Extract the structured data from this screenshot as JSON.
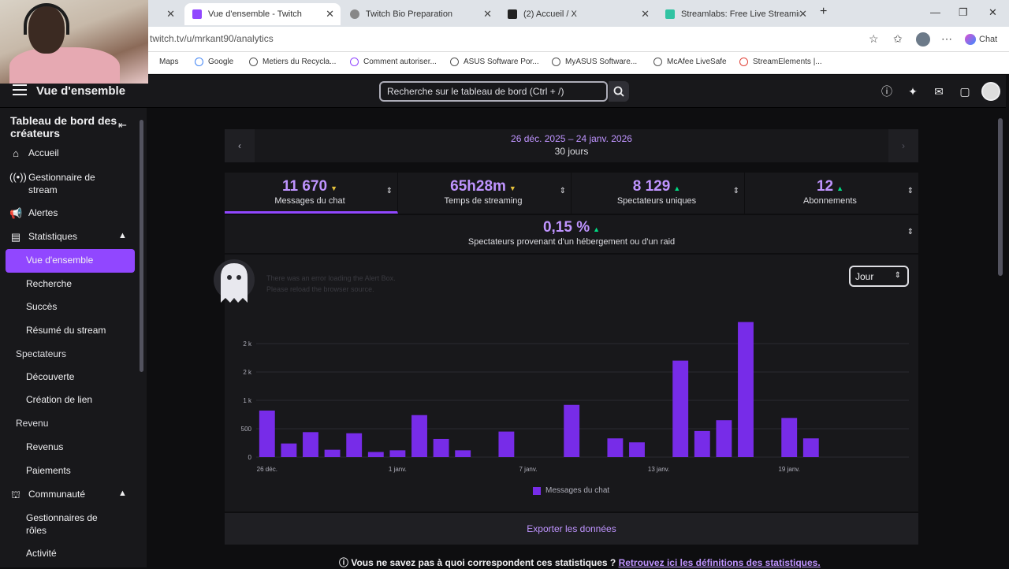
{
  "browser": {
    "tabs": [
      {
        "title": "Vue d'ensemble - Twitch",
        "active": true
      },
      {
        "title": "Twitch Bio Preparation",
        "active": false
      },
      {
        "title": "(2) Accueil / X",
        "active": false
      },
      {
        "title": "Streamlabs: Free Live Streaming &",
        "active": false
      }
    ],
    "url": "twitch.tv/u/mrkant90/analytics",
    "chat_button": "Chat",
    "bookmarks": [
      "Maps",
      "Google",
      "Metiers du Recycla...",
      "Comment autoriser...",
      "ASUS Software Por...",
      "MyASUS Software...",
      "McAfee LiveSafe",
      "StreamElements |..."
    ]
  },
  "topnav": {
    "title": "Vue d'ensemble",
    "search_placeholder": "Recherche sur le tableau de bord (Ctrl + /)"
  },
  "sidebar": {
    "header": "Tableau de bord des créateurs",
    "items": {
      "accueil": "Accueil",
      "gestionnaire": "Gestionnaire de stream",
      "alertes": "Alertes",
      "statistiques": "Statistiques",
      "vue": "Vue d'ensemble",
      "recherche": "Recherche",
      "succes": "Succès",
      "resume": "Résumé du stream",
      "spectateurs": "Spectateurs",
      "decouverte": "Découverte",
      "creation": "Création de lien",
      "revenu": "Revenu",
      "revenus": "Revenus",
      "paiements": "Paiements",
      "communaute": "Communauté",
      "roles": "Gestionnaires de rôles",
      "activite": "Activité"
    }
  },
  "dates": {
    "range": "26 déc. 2025 – 24 janv. 2026",
    "days": "30 jours"
  },
  "stats": [
    {
      "value": "11 670",
      "label": "Messages du chat",
      "trend": "down"
    },
    {
      "value": "65h28m",
      "label": "Temps de streaming",
      "trend": "down"
    },
    {
      "value": "8 129",
      "label": "Spectateurs uniques",
      "trend": "up"
    },
    {
      "value": "12",
      "label": "Abonnements",
      "trend": "up"
    },
    {
      "value": "0,15 %",
      "label": "Spectateurs provenant d'un hébergement ou d'un raid",
      "trend": "up"
    }
  ],
  "period_select": "Jour",
  "alert_overlay": {
    "line1": "There was an error loading the Alert Box.",
    "line2": "Please reload the browser source."
  },
  "chart_data": {
    "type": "bar",
    "categories": [
      "26 déc.",
      "27 déc.",
      "28 déc.",
      "29 déc.",
      "30 déc.",
      "31 déc.",
      "1 janv.",
      "2 janv.",
      "3 janv.",
      "4 janv.",
      "5 janv.",
      "6 janv.",
      "7 janv.",
      "8 janv.",
      "9 janv.",
      "10 janv.",
      "11 janv.",
      "12 janv.",
      "13 janv.",
      "14 janv.",
      "15 janv.",
      "16 janv.",
      "17 janv.",
      "18 janv.",
      "19 janv.",
      "20 janv.",
      "21 janv.",
      "22 janv.",
      "23 janv.",
      "24 janv."
    ],
    "tick_labels": [
      "26 déc.",
      "1 janv.",
      "7 janv.",
      "13 janv.",
      "19 janv."
    ],
    "y_ticks": [
      "0",
      "500",
      "1 k",
      "2 k",
      "2 k"
    ],
    "series": [
      {
        "name": "Messages du chat",
        "values": [
          820,
          240,
          440,
          130,
          420,
          90,
          120,
          740,
          320,
          120,
          0,
          450,
          0,
          0,
          920,
          0,
          330,
          260,
          0,
          1700,
          460,
          650,
          2380,
          0,
          690,
          330,
          0,
          0,
          0,
          0
        ]
      }
    ],
    "ylim": [
      0,
      2500
    ]
  },
  "legend_label": "Messages du chat",
  "export_label": "Exporter les données",
  "footer": {
    "question": "Vous ne savez pas à quoi correspondent ces statistiques ?",
    "link": "Retrouvez ici les définitions des statistiques."
  },
  "colors": {
    "accent": "#9147ff",
    "bar": "#772ce8",
    "link": "#bf94ff"
  }
}
